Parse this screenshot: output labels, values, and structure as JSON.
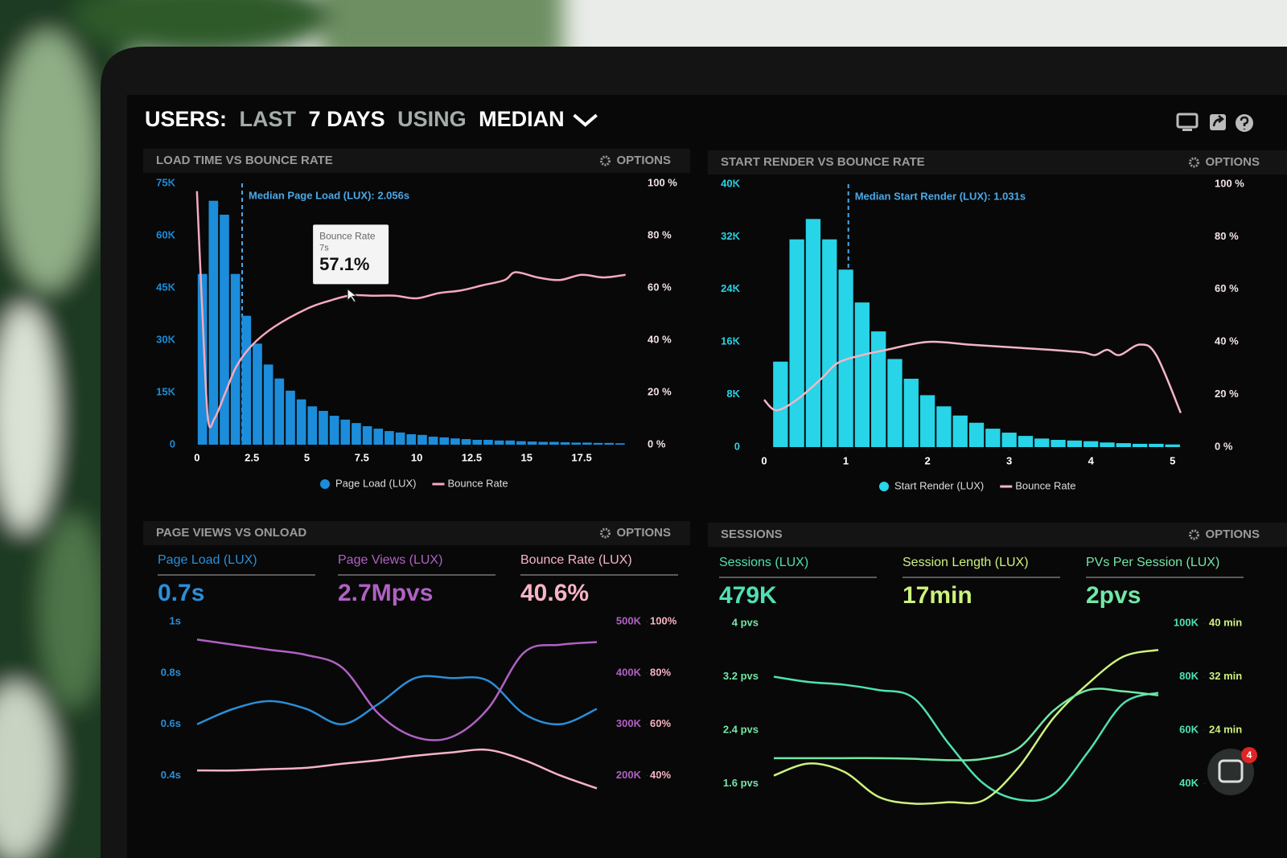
{
  "header": {
    "title_parts": [
      "USERS:",
      "LAST",
      "7 DAYS",
      "USING",
      "MEDIAN"
    ]
  },
  "chat_badge": 4,
  "chart_data": [
    {
      "type": "histogram",
      "title": "LOAD TIME VS BOUNCE RATE",
      "options": "OPTIONS",
      "bins": [
        0,
        0.5,
        1,
        1.5,
        2,
        2.5,
        3,
        3.5,
        4,
        4.5,
        5,
        5.5,
        6,
        6.5,
        7,
        7.5,
        8,
        8.5,
        9,
        9.5,
        10,
        10.5,
        11,
        11.5,
        12,
        12.5,
        13,
        13.5,
        14,
        14.5,
        15,
        15.5,
        16,
        16.5,
        17,
        17.5,
        18,
        18.5,
        19,
        19.5
      ],
      "series": [
        {
          "name": "Page Load (LUX)",
          "color": "#1c8ddb",
          "values": [
            49000,
            70000,
            66000,
            49000,
            37000,
            29000,
            23000,
            19000,
            15500,
            13000,
            11000,
            9700,
            8300,
            7200,
            6200,
            5300,
            4600,
            3900,
            3500,
            3000,
            2800,
            2300,
            2100,
            1800,
            1600,
            1400,
            1400,
            1200,
            1200,
            1000,
            900,
            800,
            800,
            700,
            600,
            600,
            500,
            500,
            400
          ]
        },
        {
          "name": "Bounce Rate",
          "color": "#f6a9bd",
          "axis": "y2",
          "x": [
            0,
            0.25,
            0.5,
            0.8,
            1.3,
            1.8,
            2.5,
            3.5,
            5,
            6,
            7,
            8,
            9,
            10,
            11,
            12,
            13,
            14,
            14.5,
            15.5,
            16.5,
            17.5,
            18.5,
            19.5
          ],
          "values": [
            97,
            50,
            10,
            10,
            20,
            30,
            38,
            45,
            52,
            55,
            57.1,
            57,
            57,
            56,
            58,
            59,
            61,
            63,
            66,
            64,
            63,
            65,
            64,
            65
          ]
        }
      ],
      "xlim": [
        -0.25,
        19.95
      ],
      "xticks": [
        0,
        2.5,
        5,
        7.5,
        10,
        12.5,
        15,
        17.5
      ],
      "ylim": [
        0,
        75000
      ],
      "yticks": [
        0,
        {
          "value": 15000,
          "label": "15K"
        },
        {
          "value": 30000,
          "label": "30K"
        },
        {
          "value": 45000,
          "label": "45K"
        },
        {
          "value": 60000,
          "label": "60K"
        },
        {
          "value": 75000,
          "label": "75K"
        }
      ],
      "y2lim": [
        0,
        100
      ],
      "y2ticks": [
        {
          "value": 0,
          "label": "0 %"
        },
        {
          "value": 20,
          "label": "20 %"
        },
        {
          "value": 40,
          "label": "40 %"
        },
        {
          "value": 60,
          "label": "60 %"
        },
        {
          "value": 80,
          "label": "80 %"
        },
        {
          "value": 100,
          "label": "100 %"
        }
      ],
      "annotation": {
        "x": 2.056,
        "text": "Median Page Load (LUX): 2.056s"
      },
      "tooltip": {
        "title": "Bounce Rate",
        "subtitle": "7s",
        "x": 7,
        "value": 57.1,
        "value_label": "57.1%"
      }
    },
    {
      "type": "histogram",
      "title": "START RENDER VS BOUNCE RATE",
      "options": "OPTIONS",
      "bins": [
        0.1,
        0.3,
        0.5,
        0.7,
        0.9,
        1.1,
        1.3,
        1.5,
        1.7,
        1.9,
        2.1,
        2.3,
        2.5,
        2.7,
        2.9,
        3.1,
        3.3,
        3.5,
        3.7,
        3.9,
        4.1,
        4.3,
        4.5,
        4.7,
        4.9,
        5.1
      ],
      "series": [
        {
          "name": "Start Render (LUX)",
          "color": "#27d4e8",
          "values": [
            13000,
            31600,
            34700,
            31600,
            27000,
            22000,
            17600,
            13400,
            10400,
            7900,
            6200,
            4800,
            3700,
            2800,
            2200,
            1700,
            1300,
            1100,
            1000,
            900,
            700,
            600,
            500,
            500,
            400
          ]
        },
        {
          "name": "Bounce Rate",
          "color": "#f3b6c6",
          "axis": "y2",
          "x": [
            0,
            0.15,
            0.4,
            0.7,
            0.9,
            1.2,
            1.5,
            2,
            2.5,
            3,
            3.5,
            3.9,
            4.05,
            4.2,
            4.35,
            4.6,
            4.8,
            5.1
          ],
          "values": [
            18,
            14,
            18,
            26,
            32,
            35,
            37,
            40,
            39,
            38,
            37,
            36,
            35,
            37,
            35,
            39,
            35,
            13
          ]
        }
      ],
      "xlim": [
        0,
        5.17
      ],
      "xticks": [
        0,
        1,
        2,
        3,
        4,
        5
      ],
      "ylim": [
        0,
        40000
      ],
      "yticks": [
        0,
        {
          "value": 8000,
          "label": "8K"
        },
        {
          "value": 16000,
          "label": "16K"
        },
        {
          "value": 24000,
          "label": "24K"
        },
        {
          "value": 32000,
          "label": "32K"
        },
        {
          "value": 40000,
          "label": "40K"
        }
      ],
      "y2lim": [
        0,
        100
      ],
      "y2ticks": [
        {
          "value": 0,
          "label": "0 %"
        },
        {
          "value": 20,
          "label": "20 %"
        },
        {
          "value": 40,
          "label": "40 %"
        },
        {
          "value": 60,
          "label": "60 %"
        },
        {
          "value": 80,
          "label": "80 %"
        },
        {
          "value": 100,
          "label": "100 %"
        }
      ],
      "annotation": {
        "x": 1.031,
        "text": "Median Start Render (LUX): 1.031s"
      }
    },
    {
      "type": "line",
      "title": "PAGE VIEWS VS ONLOAD",
      "options": "OPTIONS",
      "categories": [
        null,
        null,
        null,
        null,
        null,
        null,
        null,
        null,
        null,
        null,
        null,
        null
      ],
      "series": [
        {
          "name": "Page Load (LUX)",
          "summary": "0.7s",
          "color": "#2a8fd8",
          "values": [
            0.6,
            0.66,
            0.69,
            0.66,
            0.6,
            0.68,
            0.78,
            0.78,
            0.77,
            0.64,
            0.6,
            0.66
          ]
        },
        {
          "name": "Page Views (LUX)",
          "summary": "2.7Mpvs",
          "color": "#b061c4",
          "axis": "y2",
          "values": [
            465000,
            455000,
            445000,
            435000,
            410000,
            320000,
            275000,
            275000,
            330000,
            440000,
            455000,
            460000
          ]
        },
        {
          "name": "Bounce Rate (LUX)",
          "summary": "40.6%",
          "color": "#f8b4c6",
          "axis": "y3",
          "values": [
            42,
            42,
            42.5,
            43,
            44.6,
            46,
            47.7,
            49,
            50,
            46,
            40,
            35
          ]
        }
      ],
      "ylim": [
        0.32,
        1
      ],
      "yticks": [
        {
          "value": 0.4,
          "label": "0.4s"
        },
        {
          "value": 0.6,
          "label": "0.6s"
        },
        {
          "value": 0.8,
          "label": "0.8s"
        },
        {
          "value": 1,
          "label": "1s"
        }
      ],
      "y2lim": [
        160000,
        500000
      ],
      "y2ticks": [
        {
          "value": 200000,
          "label": "200K"
        },
        {
          "value": 300000,
          "label": "300K"
        },
        {
          "value": 400000,
          "label": "400K"
        },
        {
          "value": 500000,
          "label": "500K"
        }
      ],
      "y3lim": [
        32,
        100
      ],
      "y3ticks": [
        {
          "value": 40,
          "label": "40%"
        },
        {
          "value": 60,
          "label": "60%"
        },
        {
          "value": 80,
          "label": "80%"
        },
        {
          "value": 100,
          "label": "100%"
        }
      ]
    },
    {
      "type": "line",
      "title": "SESSIONS",
      "options": "OPTIONS",
      "categories": [
        null,
        null,
        null,
        null,
        null,
        null,
        null,
        null,
        null,
        null,
        null,
        null
      ],
      "series": [
        {
          "name": "Sessions (LUX)",
          "summary": "479K",
          "color": "#4fe0b4",
          "axis": "y2",
          "values": [
            80000,
            78000,
            77000,
            75000,
            72000,
            55000,
            40000,
            34000,
            36000,
            52000,
            70000,
            74000
          ]
        },
        {
          "name": "Session Length (LUX)",
          "summary": "17min",
          "color": "#cdf27e",
          "axis": "y3",
          "values": [
            17.2,
            19,
            17.8,
            14,
            13,
            13.2,
            13.5,
            18.4,
            25.8,
            31,
            35,
            36
          ]
        },
        {
          "name": "PVs Per Session (LUX)",
          "summary": "2pvs",
          "color": "#72e8a6",
          "values": [
            1.98,
            1.98,
            1.98,
            1.98,
            1.97,
            1.95,
            1.97,
            2.13,
            2.69,
            3,
            2.98,
            2.92
          ]
        }
      ],
      "ylim": [
        1.28,
        4
      ],
      "yticks": [
        {
          "value": 1.6,
          "label": "1.6 pvs"
        },
        {
          "value": 2.4,
          "label": "2.4 pvs"
        },
        {
          "value": 3.2,
          "label": "3.2 pvs"
        },
        {
          "value": 4,
          "label": "4 pvs"
        }
      ],
      "y2lim": [
        32000,
        100000
      ],
      "y2ticks": [
        {
          "value": 40000,
          "label": "40K"
        },
        {
          "value": 60000,
          "label": "60K"
        },
        {
          "value": 80000,
          "label": "80K"
        },
        {
          "value": 100000,
          "label": "100K"
        }
      ],
      "y3lim": [
        12.8,
        40
      ],
      "y3ticks": [
        {
          "value": 24,
          "label": "24 min"
        },
        {
          "value": 32,
          "label": "32 min"
        },
        {
          "value": 40,
          "label": "40 min"
        }
      ]
    }
  ]
}
